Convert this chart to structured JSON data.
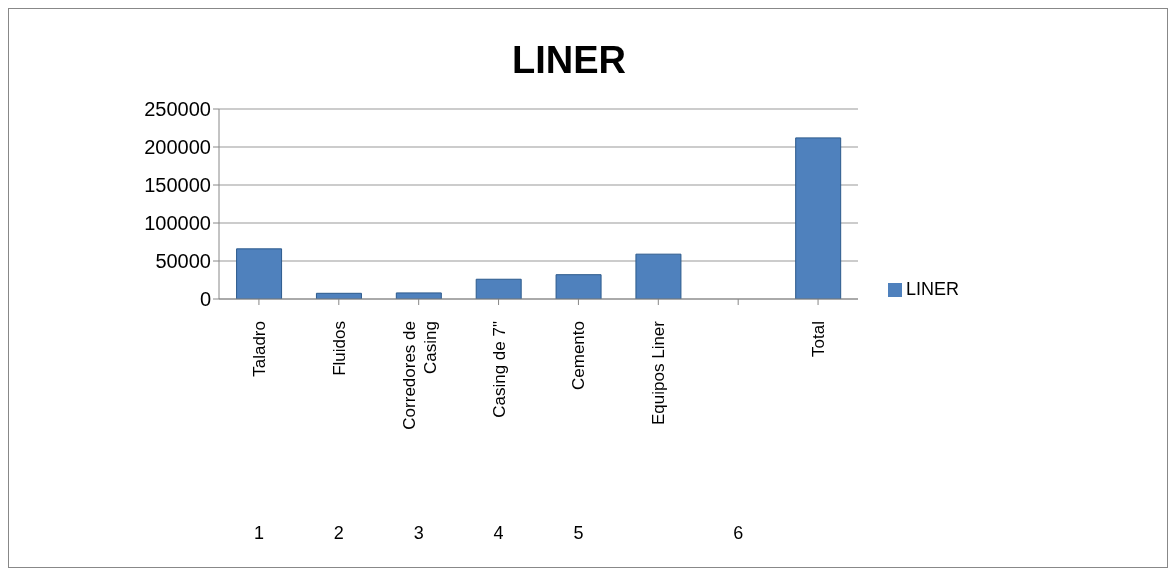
{
  "chart_data": {
    "type": "bar",
    "title": "LINER",
    "categories": [
      "Taladro",
      "Fluidos",
      "Corredores de Casing",
      "Casing de 7\"",
      "Cemento",
      "Equipos Liner",
      null,
      "Total"
    ],
    "series": [
      {
        "name": "LINER",
        "color": "#4f81bd",
        "values": [
          66000,
          7500,
          8000,
          26000,
          32000,
          59000,
          null,
          212000
        ]
      }
    ],
    "ylim": [
      0,
      250000
    ],
    "yticks": [
      0,
      50000,
      100000,
      150000,
      200000,
      250000
    ],
    "grid": "y",
    "legend": "right",
    "annotations": [
      "1",
      "2",
      "3",
      "4",
      "5",
      "6"
    ]
  }
}
